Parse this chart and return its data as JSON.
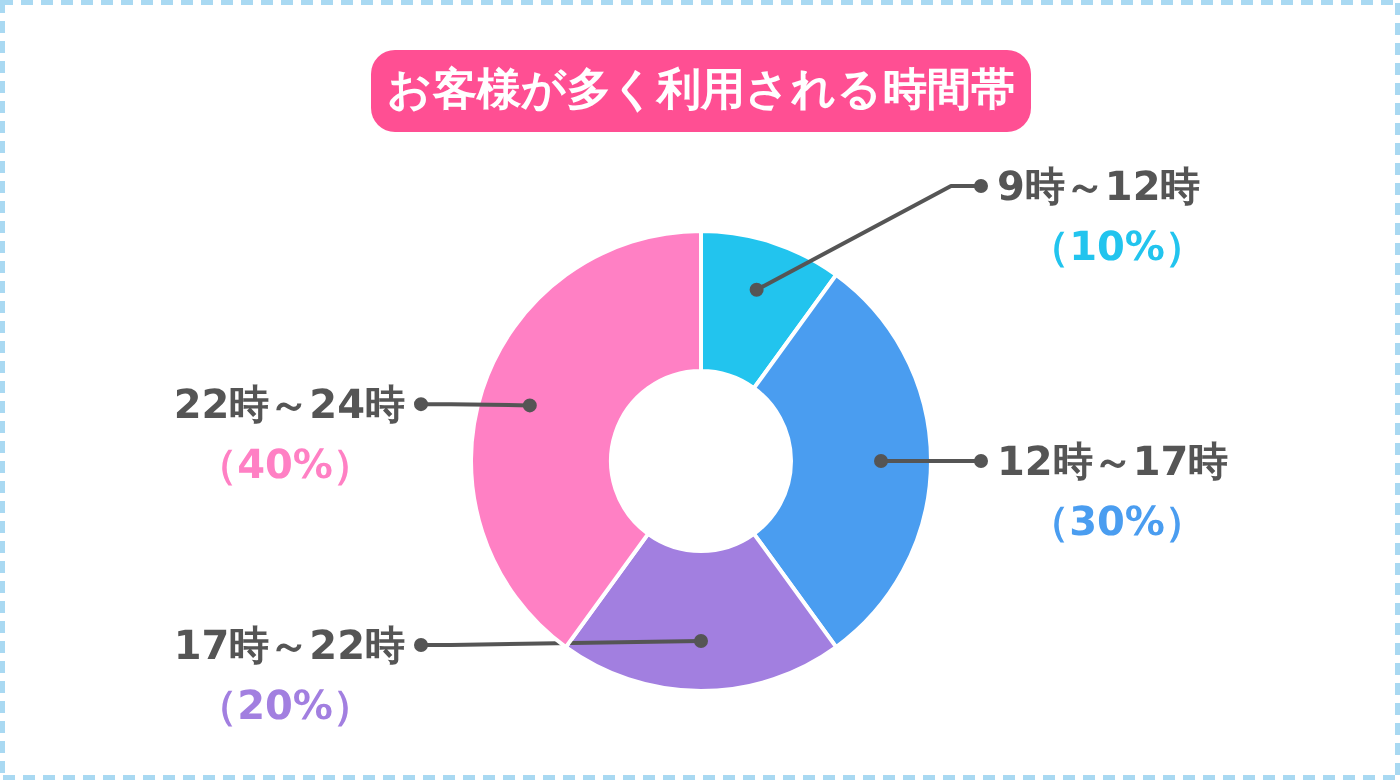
{
  "chart_data": {
    "type": "donut",
    "title": "お客様が多く利用される時間帯",
    "categories": [
      "9時～12時",
      "12時～17時",
      "17時～22時",
      "22時～24時"
    ],
    "values": [
      10,
      30,
      20,
      40
    ],
    "colors": [
      "#22c4ee",
      "#4a9df0",
      "#a27fe0",
      "#ff80c4"
    ],
    "value_labels": [
      "（10%）",
      "（30%）",
      "（20%）",
      "（40%）"
    ]
  }
}
